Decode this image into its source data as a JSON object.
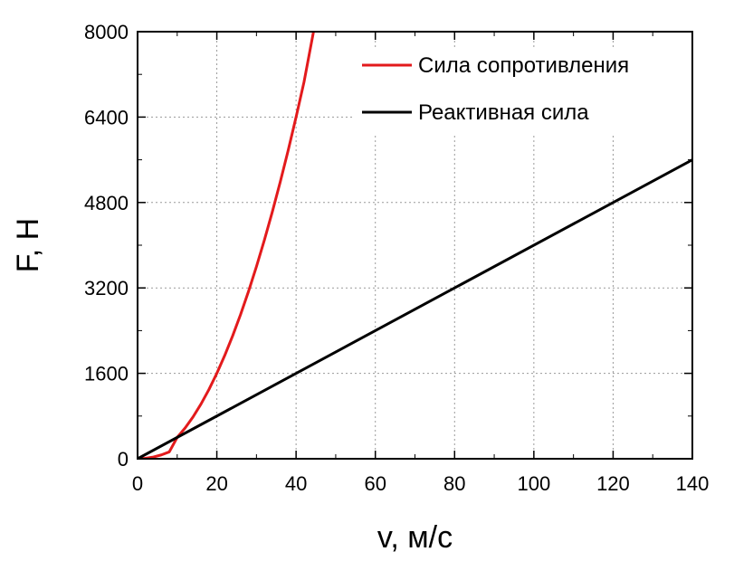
{
  "chart_data": {
    "type": "line",
    "xlabel": "v, м/с",
    "ylabel": "F, Н",
    "xlim": [
      0,
      140
    ],
    "ylim": [
      0,
      8000
    ],
    "xticks": [
      0,
      20,
      40,
      60,
      80,
      100,
      120,
      140
    ],
    "yticks": [
      0,
      1600,
      3200,
      4800,
      6400,
      8000
    ],
    "grid": true,
    "legend_position": "top-right",
    "series": [
      {
        "name": "Сила сопротивления",
        "color": "#e31a1c",
        "x": [
          0,
          2,
          4,
          6,
          8,
          10,
          12,
          14,
          16,
          18,
          20,
          22,
          24,
          26,
          28,
          30,
          32,
          34,
          36,
          38,
          40,
          42,
          44.4
        ],
        "y": [
          0,
          8,
          32,
          72,
          128,
          400,
          576,
          784,
          1024,
          1296,
          1600,
          1936,
          2304,
          2704,
          3136,
          3600,
          4096,
          4624,
          5184,
          5776,
          6400,
          7056,
          8000
        ]
      },
      {
        "name": "Реактивная сила",
        "color": "#000000",
        "x": [
          0,
          140
        ],
        "y": [
          0,
          5600
        ]
      }
    ]
  }
}
